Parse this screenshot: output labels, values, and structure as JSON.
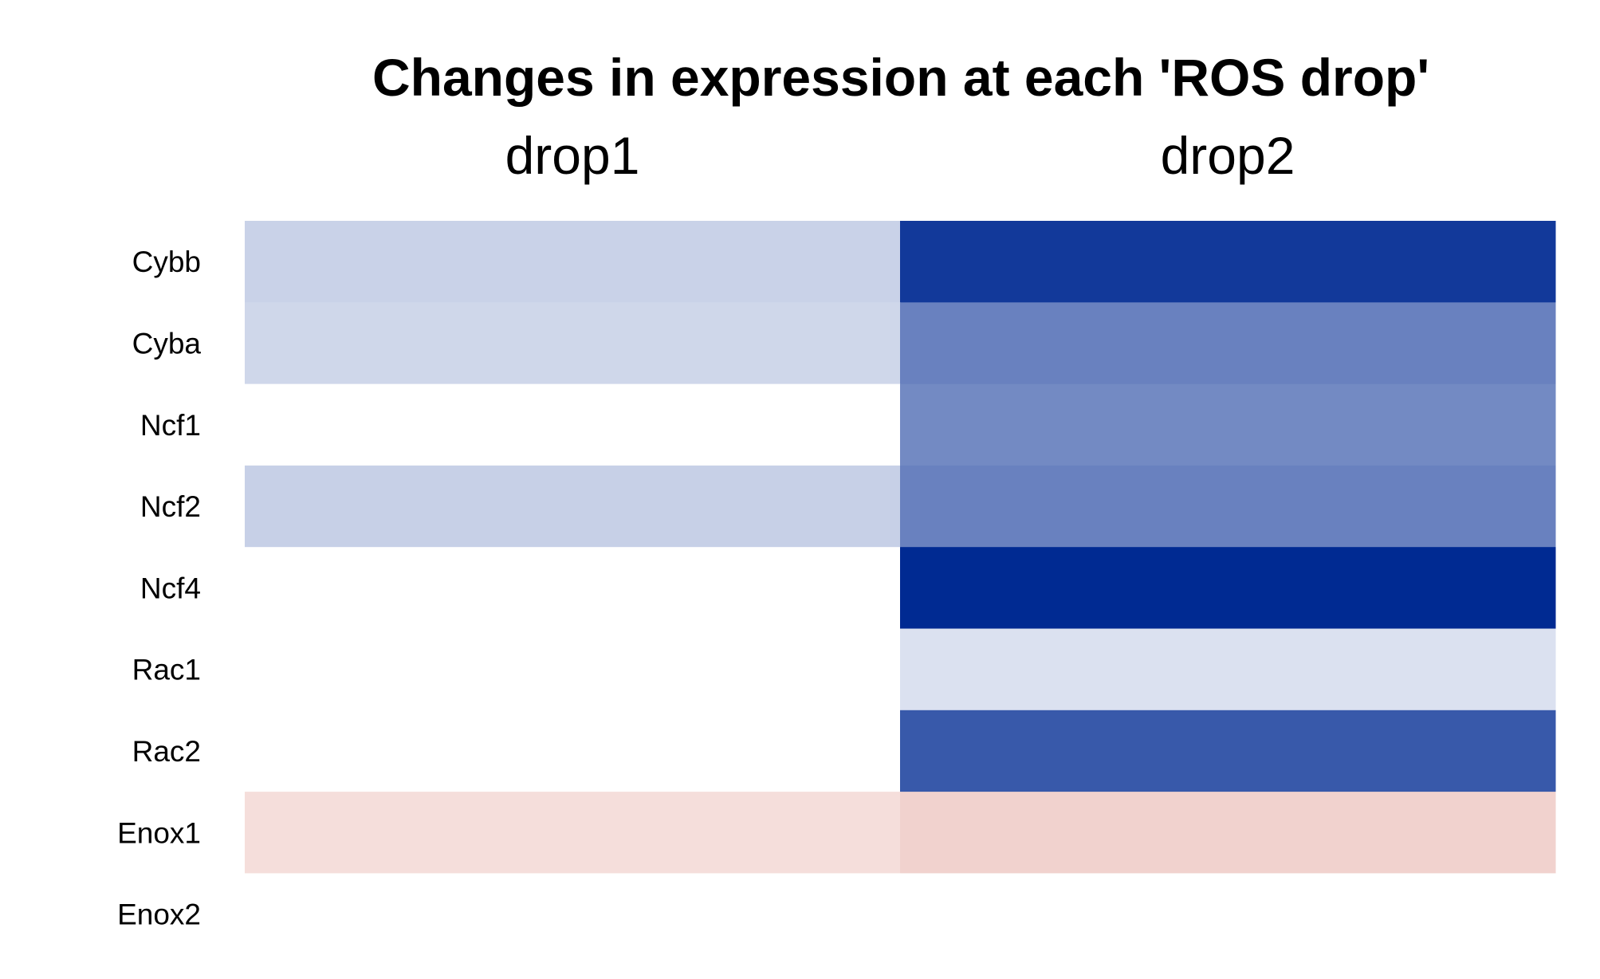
{
  "chart_data": {
    "type": "heatmap",
    "title": "Changes in expression at each 'ROS drop'",
    "columns": [
      "drop1",
      "drop2"
    ],
    "rows": [
      "Cybb",
      "Cyba",
      "Ncf1",
      "Ncf2",
      "Ncf4",
      "Rac1",
      "Rac2",
      "Enox1",
      "Enox2"
    ],
    "values": [
      [
        -0.21,
        -0.93
      ],
      [
        -0.19,
        -0.59
      ],
      [
        0,
        -0.55
      ],
      [
        -0.22,
        -0.59
      ],
      [
        0,
        -1.0
      ],
      [
        0,
        -0.14
      ],
      [
        0,
        -0.78
      ],
      [
        0.16,
        0.22
      ],
      [
        0,
        0
      ]
    ],
    "color_scale": {
      "low": "#002a92",
      "mid": "#ffffff",
      "high": "#c0321f",
      "limits": [
        -1,
        1
      ]
    },
    "grid": false,
    "legend": "none"
  }
}
